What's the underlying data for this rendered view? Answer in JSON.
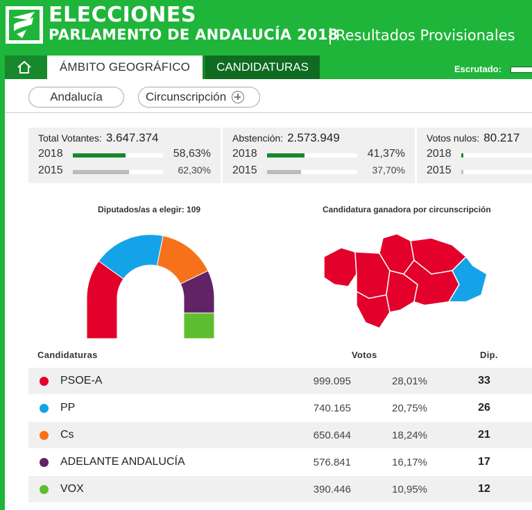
{
  "header": {
    "title_line1": "ELECCIONES",
    "title_line2": "PARLAMENTO DE ANDALUCÍA 2018",
    "subtitle": "Resultados Provisionales"
  },
  "nav": {
    "home_icon": "home-icon",
    "tabs": [
      {
        "label": "ÁMBITO GEOGRÁFICO",
        "active": true
      },
      {
        "label": "CANDIDATURAS",
        "active": false
      }
    ],
    "escrutado_label": "Escrutado:"
  },
  "filters": {
    "region": "Andalucía",
    "circunscripcion": "Circunscripción"
  },
  "stats": [
    {
      "label": "Total Votantes:",
      "value": "3.647.374",
      "rows": [
        {
          "year": "2018",
          "pct": "58,63%",
          "fraction": 0.5863
        },
        {
          "year": "2015",
          "pct": "62,30%",
          "fraction": 0.623
        }
      ]
    },
    {
      "label": "Abstención:",
      "value": "2.573.949",
      "rows": [
        {
          "year": "2018",
          "pct": "41,37%",
          "fraction": 0.4137
        },
        {
          "year": "2015",
          "pct": "37,70%",
          "fraction": 0.377
        }
      ]
    },
    {
      "label": "Votos nulos:",
      "value": "80.217",
      "rows": [
        {
          "year": "2018",
          "pct": "",
          "fraction": 0.02
        },
        {
          "year": "2015",
          "pct": "",
          "fraction": 0.02
        }
      ]
    }
  ],
  "charts": {
    "parliament_title": "Diputados/as a elegir: 109",
    "map_title": "Candidatura ganadora por circunscripción"
  },
  "table": {
    "col_candidaturas": "Candidaturas",
    "col_votos": "Votos",
    "col_dip": "Dip.",
    "rows": [
      {
        "name": "PSOE-A",
        "votes": "999.095",
        "pct": "28,01%",
        "dip": "33",
        "color": "#e3002b"
      },
      {
        "name": "PP",
        "votes": "740.165",
        "pct": "20,75%",
        "dip": "26",
        "color": "#14a3e8"
      },
      {
        "name": "Cs",
        "votes": "650.644",
        "pct": "18,24%",
        "dip": "21",
        "color": "#f7711b"
      },
      {
        "name": "ADELANTE ANDALUCÍA",
        "votes": "576.841",
        "pct": "16,17%",
        "dip": "17",
        "color": "#612365"
      },
      {
        "name": "VOX",
        "votes": "390.446",
        "pct": "10,95%",
        "dip": "12",
        "color": "#5fbe2f"
      }
    ]
  },
  "colors": {
    "brand_green": "#1fb53a",
    "dark_green": "#0e6b20",
    "map_psoe": "#e3002b",
    "map_pp": "#14a3e8"
  }
}
